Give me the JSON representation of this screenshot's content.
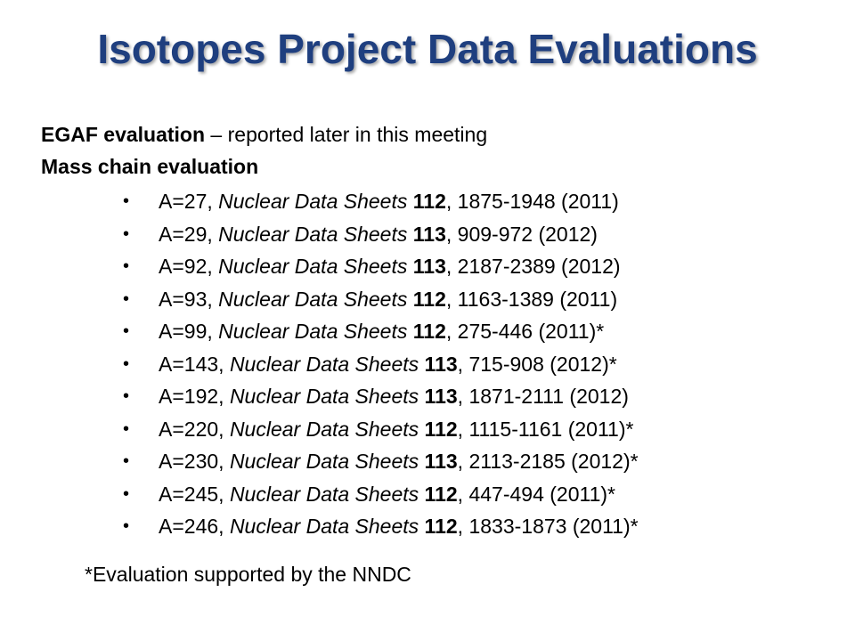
{
  "title": "Isotopes Project Data Evaluations",
  "intro": {
    "bold": "EGAF evaluation",
    "rest": " – reported later in this meeting"
  },
  "section": "Mass chain evaluation",
  "bullet_symbol": "•",
  "items": [
    {
      "mass": "A=27, ",
      "journal": "Nuclear Data Sheets",
      "volume": " 112",
      "pages": ", 1875-1948 (2011)"
    },
    {
      "mass": "A=29, ",
      "journal": "Nuclear Data Sheets",
      "volume": " 113",
      "pages": ", 909-972 (2012)"
    },
    {
      "mass": "A=92, ",
      "journal": "Nuclear Data Sheets",
      "volume": " 113",
      "pages": ", 2187-2389 (2012)"
    },
    {
      "mass": "A=93, ",
      "journal": "Nuclear Data Sheets",
      "volume": " 112",
      "pages": ", 1163-1389 (2011)"
    },
    {
      "mass": "A=99, ",
      "journal": "Nuclear Data Sheets",
      "volume": " 112",
      "pages": ", 275-446 (2011)*"
    },
    {
      "mass": "A=143, ",
      "journal": "Nuclear Data Sheets",
      "volume": " 113",
      "pages": ", 715-908 (2012)*"
    },
    {
      "mass": "A=192, ",
      "journal": "Nuclear Data Sheets",
      "volume": " 113",
      "pages": ", 1871-2111 (2012)"
    },
    {
      "mass": "A=220, ",
      "journal": "Nuclear Data Sheets",
      "volume": " 112",
      "pages": ", 1115-1161 (2011)*"
    },
    {
      "mass": "A=230, ",
      "journal": "Nuclear Data Sheets",
      "volume": " 113",
      "pages": ", 2113-2185 (2012)*"
    },
    {
      "mass": "A=245, ",
      "journal": "Nuclear Data Sheets",
      "volume": " 112",
      "pages": ", 447-494 (2011)*"
    },
    {
      "mass": "A=246, ",
      "journal": "Nuclear Data Sheets",
      "volume": " 112",
      "pages": ", 1833-1873 (2011)*"
    }
  ],
  "footnote": "*Evaluation supported by the NNDC"
}
